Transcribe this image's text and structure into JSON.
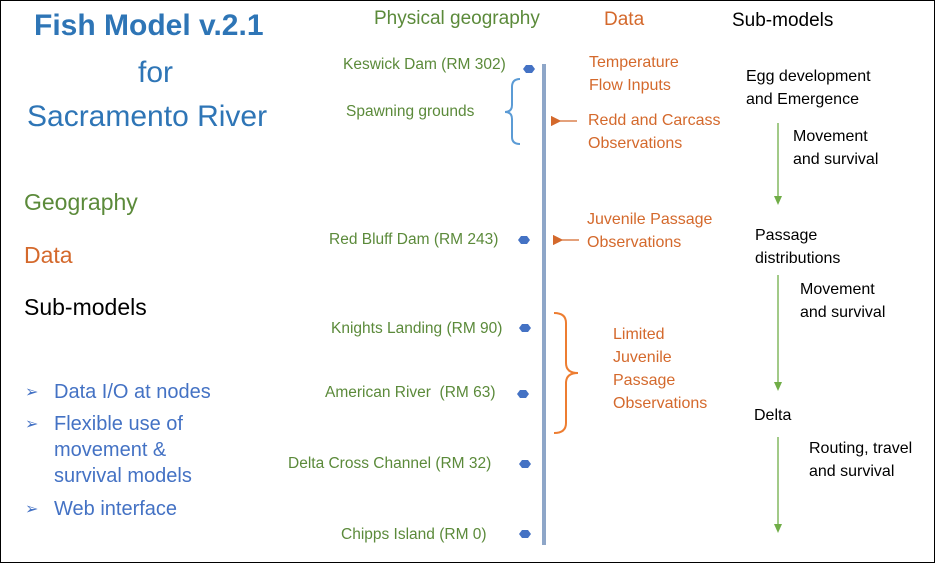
{
  "title": {
    "line1": "Fish Model v.2.1",
    "line2": "for",
    "line3": "Sacramento River"
  },
  "legend": {
    "geography": "Geography",
    "data": "Data",
    "submodels": "Sub-models"
  },
  "features": [
    {
      "line1": "Data I/O at nodes"
    },
    {
      "line1": "Flexible use of",
      "line2": "movement &",
      "line3": "survival models"
    },
    {
      "line1": "Web interface"
    }
  ],
  "headers": {
    "physical": "Physical geography",
    "data": "Data",
    "submodels": "Sub-models"
  },
  "nodes": [
    "Keswick Dam (RM 302)",
    "Spawning grounds",
    "Red Bluff Dam (RM 243)",
    "Knights Landing (RM 90)",
    "American River  (RM 63)",
    "Delta Cross Channel (RM 32)",
    "Chipps Island (RM 0)"
  ],
  "data_items": {
    "temperature": {
      "line1": "Temperature",
      "line2": "Flow Inputs"
    },
    "redd": {
      "line1": "Redd and Carcass",
      "line2": "Observations"
    },
    "juvenile": {
      "line1": "Juvenile Passage",
      "line2": "Observations"
    },
    "limited": {
      "line1": "Limited",
      "line2": "Juvenile",
      "line3": "Passage",
      "line4": "Observations"
    }
  },
  "submodels": {
    "egg": {
      "line1": "Egg development",
      "line2": "and Emergence"
    },
    "move1": {
      "line1": "Movement",
      "line2": "and survival"
    },
    "passage": {
      "line1": "Passage",
      "line2": "distributions"
    },
    "move2": {
      "line1": "Movement",
      "line2": "and survival"
    },
    "delta": "Delta",
    "routing": {
      "line1": "Routing, travel",
      "line2": "and survival"
    }
  },
  "colors": {
    "geography": "#5b8a3a",
    "data": "#d4692c",
    "title": "#2e75b6",
    "river": "#8ea6c8",
    "node": "#4472c4",
    "arrow": "#70ad47",
    "bracket_blue": "#5b9bd5",
    "bracket_orange": "#ed7d31"
  },
  "icons": {
    "bullet": "arrow-bullet-icon",
    "node": "hexagon-node-icon"
  }
}
